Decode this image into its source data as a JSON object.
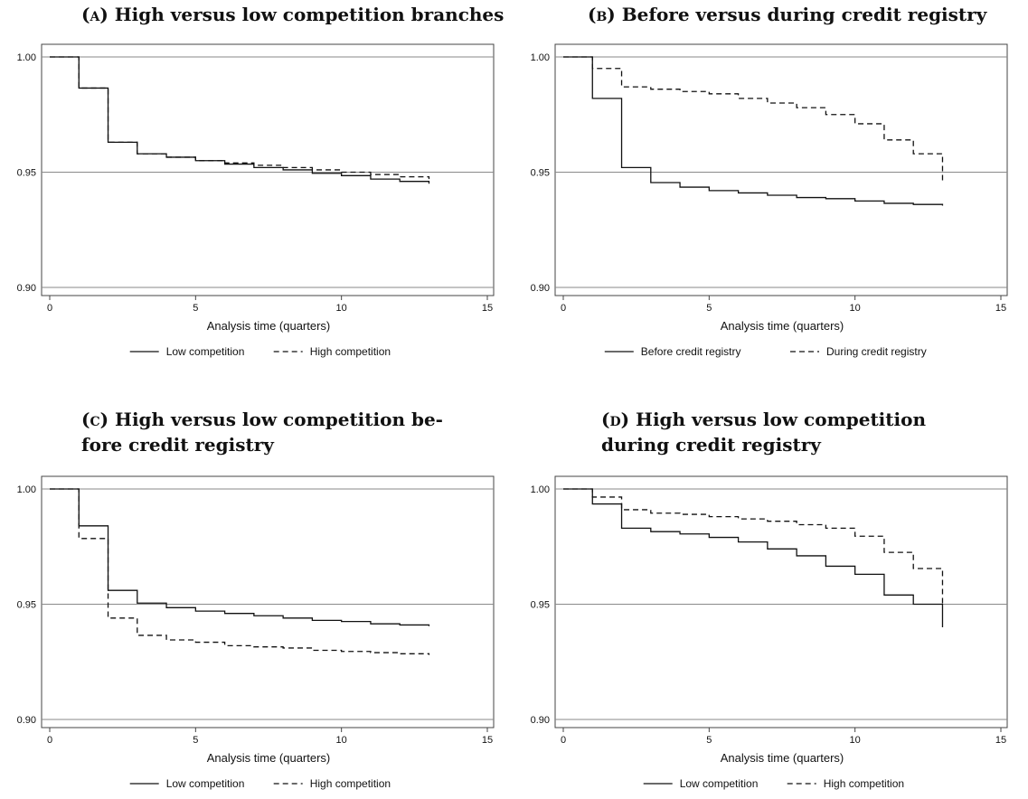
{
  "chart_data": [
    {
      "id": "a",
      "type": "line",
      "title_label": "(a)",
      "title": "High versus low competition branches",
      "xlabel": "Analysis time (quarters)",
      "ylabel": "",
      "xlim": [
        0,
        15
      ],
      "ylim": [
        0.9,
        1.0
      ],
      "xticks": [
        0,
        5,
        10,
        15
      ],
      "xtick_labels": [
        "0",
        "5",
        "10",
        "15"
      ],
      "yticks": [
        0.9,
        0.95,
        1.0
      ],
      "ytick_labels": [
        "0.90",
        "0.95",
        "1.00"
      ],
      "grid": "horizontal",
      "legend_position": "bottom",
      "series": [
        {
          "name": "Low competition",
          "style": "solid",
          "step": true,
          "x": [
            0,
            1,
            2,
            3,
            4,
            5,
            6,
            7,
            8,
            9,
            10,
            11,
            12,
            13
          ],
          "y": [
            1.0,
            0.9865,
            0.963,
            0.958,
            0.9565,
            0.955,
            0.9535,
            0.952,
            0.951,
            0.9495,
            0.9485,
            0.947,
            0.946,
            0.945
          ]
        },
        {
          "name": "High competition",
          "style": "dashed",
          "step": true,
          "x": [
            0,
            1,
            2,
            3,
            4,
            5,
            6,
            7,
            8,
            9,
            10,
            11,
            12,
            13
          ],
          "y": [
            1.0,
            0.9865,
            0.963,
            0.958,
            0.9565,
            0.955,
            0.954,
            0.953,
            0.952,
            0.951,
            0.95,
            0.949,
            0.948,
            0.947
          ]
        }
      ]
    },
    {
      "id": "b",
      "type": "line",
      "title_label": "(b)",
      "title": "Before versus during credit registry",
      "xlabel": "Analysis time (quarters)",
      "ylabel": "",
      "xlim": [
        0,
        15
      ],
      "ylim": [
        0.9,
        1.0
      ],
      "xticks": [
        0,
        5,
        10,
        15
      ],
      "xtick_labels": [
        "0",
        "5",
        "10",
        "15"
      ],
      "yticks": [
        0.9,
        0.95,
        1.0
      ],
      "ytick_labels": [
        "0.90",
        "0.95",
        "1.00"
      ],
      "grid": "horizontal",
      "legend_position": "bottom",
      "series": [
        {
          "name": "Before credit registry",
          "style": "solid",
          "step": true,
          "x": [
            0,
            1,
            2,
            3,
            4,
            5,
            6,
            7,
            8,
            9,
            10,
            11,
            12,
            13
          ],
          "y": [
            1.0,
            0.982,
            0.952,
            0.9455,
            0.9435,
            0.942,
            0.941,
            0.94,
            0.939,
            0.9385,
            0.9375,
            0.9365,
            0.936,
            0.9355
          ]
        },
        {
          "name": "During credit registry",
          "style": "dashed",
          "step": true,
          "x": [
            0,
            1,
            2,
            3,
            4,
            5,
            6,
            7,
            8,
            9,
            10,
            11,
            12,
            13
          ],
          "y": [
            1.0,
            0.995,
            0.987,
            0.986,
            0.985,
            0.984,
            0.982,
            0.98,
            0.978,
            0.975,
            0.971,
            0.964,
            0.958,
            0.946
          ]
        }
      ]
    },
    {
      "id": "c",
      "type": "line",
      "title_label": "(c)",
      "title": "High versus low competition be-|fore credit registry",
      "xlabel": "Analysis time (quarters)",
      "ylabel": "",
      "xlim": [
        0,
        15
      ],
      "ylim": [
        0.9,
        1.0
      ],
      "xticks": [
        0,
        5,
        10,
        15
      ],
      "xtick_labels": [
        "0",
        "5",
        "10",
        "15"
      ],
      "yticks": [
        0.9,
        0.95,
        1.0
      ],
      "ytick_labels": [
        "0.90",
        "0.95",
        "1.00"
      ],
      "grid": "horizontal",
      "legend_position": "bottom",
      "series": [
        {
          "name": "Low competition",
          "style": "solid",
          "step": true,
          "x": [
            0,
            1,
            2,
            3,
            4,
            5,
            6,
            7,
            8,
            9,
            10,
            11,
            12,
            13
          ],
          "y": [
            1.0,
            0.984,
            0.956,
            0.9505,
            0.9485,
            0.947,
            0.946,
            0.945,
            0.944,
            0.943,
            0.9425,
            0.9415,
            0.941,
            0.9405
          ]
        },
        {
          "name": "High competition",
          "style": "dashed",
          "step": true,
          "x": [
            0,
            1,
            2,
            3,
            4,
            5,
            6,
            7,
            8,
            9,
            10,
            11,
            12,
            13
          ],
          "y": [
            1.0,
            0.9785,
            0.944,
            0.9365,
            0.9345,
            0.9335,
            0.932,
            0.9315,
            0.931,
            0.93,
            0.9295,
            0.929,
            0.9285,
            0.928
          ]
        }
      ]
    },
    {
      "id": "d",
      "type": "line",
      "title_label": "(d)",
      "title": "High versus low competition|during credit registry",
      "xlabel": "Analysis time (quarters)",
      "ylabel": "",
      "xlim": [
        0,
        15
      ],
      "ylim": [
        0.9,
        1.0
      ],
      "xticks": [
        0,
        5,
        10,
        15
      ],
      "xtick_labels": [
        "0",
        "5",
        "10",
        "15"
      ],
      "yticks": [
        0.9,
        0.95,
        1.0
      ],
      "ytick_labels": [
        "0.90",
        "0.95",
        "1.00"
      ],
      "grid": "horizontal",
      "legend_position": "bottom",
      "series": [
        {
          "name": "Low competition",
          "style": "solid",
          "step": true,
          "x": [
            0,
            1,
            2,
            3,
            4,
            5,
            6,
            7,
            8,
            9,
            10,
            11,
            12,
            13
          ],
          "y": [
            1.0,
            0.9935,
            0.983,
            0.9815,
            0.9805,
            0.979,
            0.977,
            0.974,
            0.971,
            0.9665,
            0.963,
            0.954,
            0.95,
            0.94
          ]
        },
        {
          "name": "High competition",
          "style": "dashed",
          "step": true,
          "x": [
            0,
            1,
            2,
            3,
            4,
            5,
            6,
            7,
            8,
            9,
            10,
            11,
            12,
            13
          ],
          "y": [
            1.0,
            0.9965,
            0.991,
            0.9895,
            0.989,
            0.988,
            0.987,
            0.986,
            0.9845,
            0.983,
            0.9795,
            0.9725,
            0.9655,
            0.95
          ]
        }
      ]
    }
  ]
}
